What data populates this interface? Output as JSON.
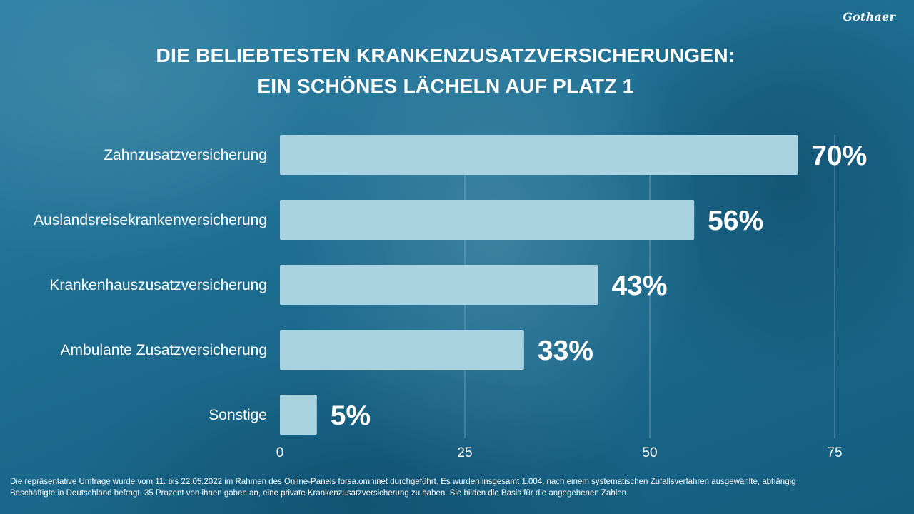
{
  "logo": "Gothaer",
  "title_lines": [
    "DIE BELIEBTESTEN KRANKENZUSATZVERSICHERUNGEN:",
    "EIN SCHÖNES LÄCHELN AUF PLATZ 1"
  ],
  "footnote": [
    "Die repräsentative Umfrage wurde vom 11. bis 22.05.2022 im Rahmen des Online-Panels forsa.omninet durchgeführt. Es wurden insgesamt 1.004, nach einem systematischen Zufallsverfahren ausgewählte, abhängig",
    "Beschäftigte in Deutschland befragt. 35 Prozent von ihnen gaben an, eine private Krankenzusatzversicherung zu haben. Sie bilden die Basis für die angegebenen Zahlen."
  ],
  "colors": {
    "background": "#1d6f91",
    "bar": "#a9d3e0",
    "text": "#ffffff",
    "gridline": "#7fb2c8"
  },
  "chart_data": {
    "type": "bar",
    "orientation": "horizontal",
    "categories": [
      "Zahnzusatzversicherung",
      "Auslandsreisekrankenversicherung",
      "Krankenhauszusatzversicherung",
      "Ambulante Zusatzversicherung",
      "Sonstige"
    ],
    "values": [
      70,
      56,
      43,
      33,
      5
    ],
    "value_labels": [
      "70%",
      "56%",
      "43%",
      "33%",
      "5%"
    ],
    "xlim": [
      0,
      75
    ],
    "xticks": [
      0,
      25,
      50,
      75
    ],
    "grid": true
  }
}
